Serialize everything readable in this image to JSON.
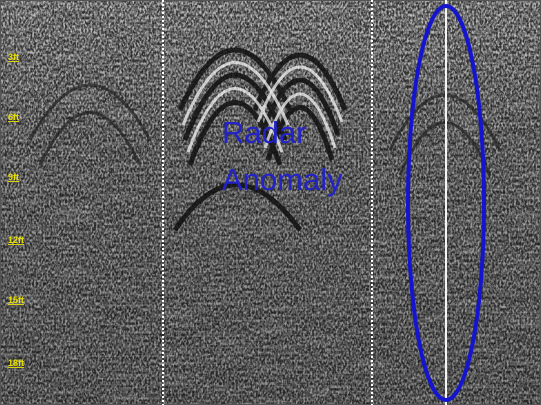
{
  "depth_labels": [
    "3ft",
    "6ft",
    "9ft",
    "12ft",
    "15ft",
    "18ft"
  ],
  "annotation": {
    "lines": [
      "Radar",
      "Anomaly"
    ]
  }
}
